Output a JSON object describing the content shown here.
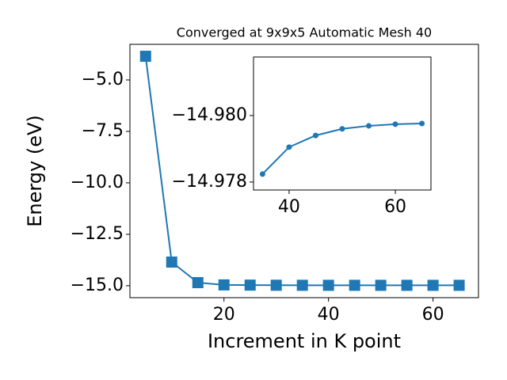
{
  "chart_data": [
    {
      "type": "line",
      "title": "Converged at 9x9x5 Automatic Mesh 40",
      "xlabel": "Increment in K point",
      "ylabel": "Energy (eV)",
      "x": [
        5,
        10,
        15,
        20,
        25,
        30,
        35,
        40,
        45,
        50,
        55,
        60,
        65
      ],
      "series": [
        {
          "color": "#1f77b4",
          "marker": "square",
          "values": [
            -3.85,
            -13.85,
            -14.85,
            -14.96,
            -14.97,
            -14.976,
            -14.97824,
            -14.97905,
            -14.9794,
            -14.9796,
            -14.97969,
            -14.97974,
            -14.97976
          ]
        }
      ],
      "xlim": [
        2,
        68.7
      ],
      "ylim": [
        -15.58,
        -3.27
      ],
      "xticks": [
        20,
        40,
        60
      ],
      "yticks": [
        {
          "value": -5,
          "label": "−5.0"
        },
        {
          "value": -7.5,
          "label": "−7.5"
        },
        {
          "value": -10,
          "label": "−10.0"
        },
        {
          "value": -12.5,
          "label": "−12.5"
        },
        {
          "value": -15,
          "label": "−15.0"
        }
      ]
    },
    {
      "type": "line",
      "x": [
        35,
        40,
        45,
        50,
        55,
        60,
        65
      ],
      "series": [
        {
          "color": "#1f77b4",
          "marker": "circle",
          "values": [
            -14.97824,
            -14.97905,
            -14.9794,
            -14.9796,
            -14.97969,
            -14.97974,
            -14.97976
          ]
        }
      ],
      "xlim": [
        33.3,
        66.7
      ],
      "ylim": [
        -14.97776,
        -14.98176
      ],
      "xticks": [
        40,
        60
      ],
      "yticks": [
        {
          "value": -14.98,
          "label": "−14.980"
        },
        {
          "value": -14.978,
          "label": "−14.978"
        }
      ]
    }
  ]
}
